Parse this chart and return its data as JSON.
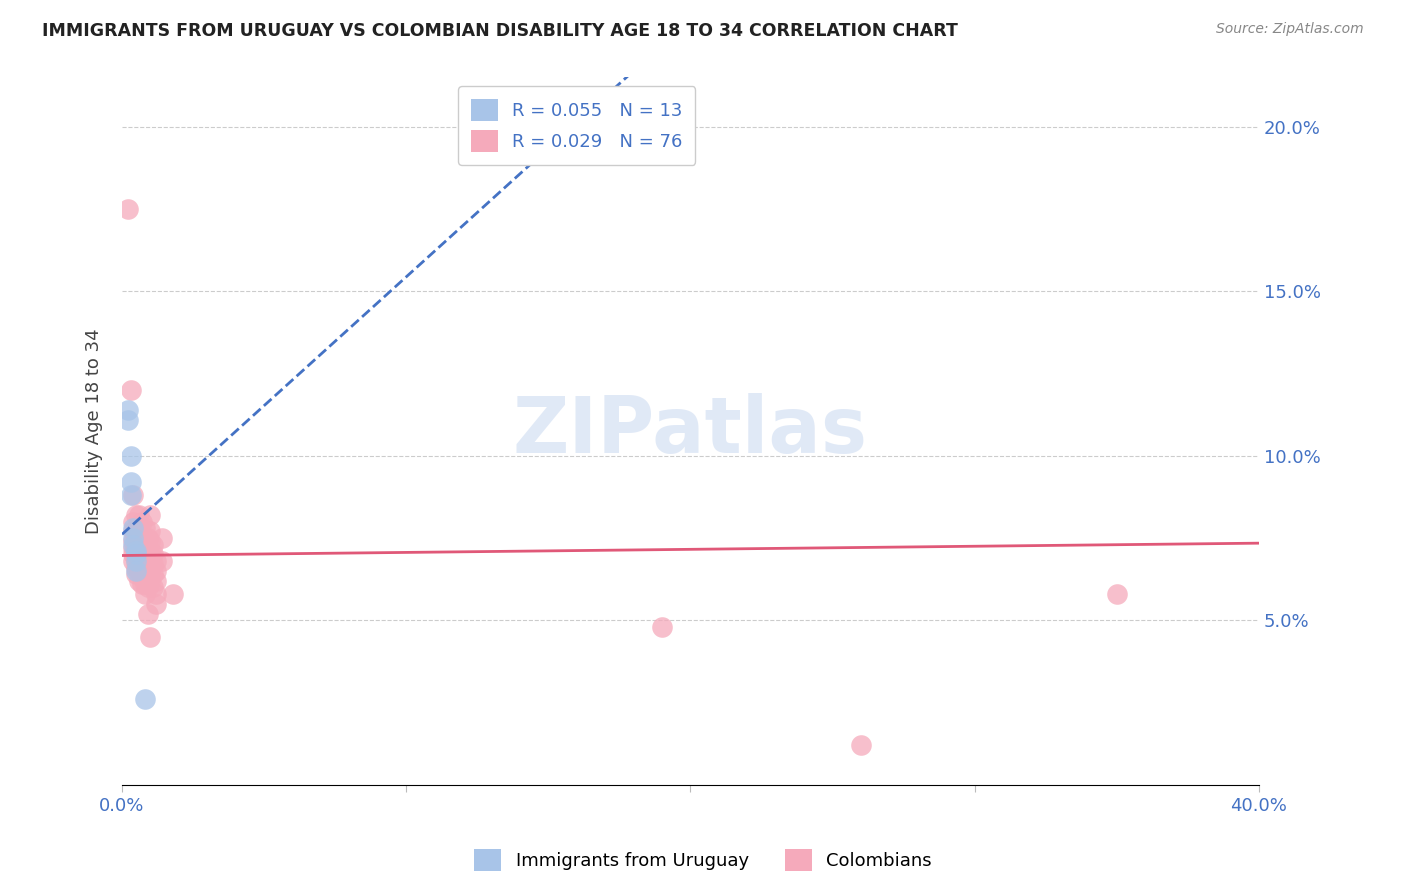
{
  "title": "IMMIGRANTS FROM URUGUAY VS COLOMBIAN DISABILITY AGE 18 TO 34 CORRELATION CHART",
  "source": "Source: ZipAtlas.com",
  "ylabel_label": "Disability Age 18 to 34",
  "x_min": 0.0,
  "x_max": 0.4,
  "y_min": 0.0,
  "y_max": 0.215,
  "watermark": "ZIPatlas",
  "uruguay_color": "#a8c4e8",
  "colombia_color": "#f5aabb",
  "uruguay_line_color": "#4472c4",
  "colombia_line_color": "#e05878",
  "uruguay_points": [
    [
      0.002,
      0.114
    ],
    [
      0.002,
      0.111
    ],
    [
      0.003,
      0.1
    ],
    [
      0.003,
      0.092
    ],
    [
      0.003,
      0.088
    ],
    [
      0.004,
      0.078
    ],
    [
      0.004,
      0.075
    ],
    [
      0.004,
      0.073
    ],
    [
      0.005,
      0.071
    ],
    [
      0.005,
      0.07
    ],
    [
      0.005,
      0.068
    ],
    [
      0.005,
      0.065
    ],
    [
      0.008,
      0.026
    ]
  ],
  "colombia_points": [
    [
      0.002,
      0.175
    ],
    [
      0.003,
      0.12
    ],
    [
      0.004,
      0.088
    ],
    [
      0.004,
      0.08
    ],
    [
      0.004,
      0.077
    ],
    [
      0.004,
      0.074
    ],
    [
      0.004,
      0.072
    ],
    [
      0.004,
      0.07
    ],
    [
      0.004,
      0.068
    ],
    [
      0.005,
      0.082
    ],
    [
      0.005,
      0.078
    ],
    [
      0.005,
      0.075
    ],
    [
      0.005,
      0.072
    ],
    [
      0.005,
      0.07
    ],
    [
      0.005,
      0.068
    ],
    [
      0.005,
      0.066
    ],
    [
      0.005,
      0.064
    ],
    [
      0.006,
      0.082
    ],
    [
      0.006,
      0.078
    ],
    [
      0.006,
      0.075
    ],
    [
      0.006,
      0.073
    ],
    [
      0.006,
      0.071
    ],
    [
      0.006,
      0.069
    ],
    [
      0.006,
      0.067
    ],
    [
      0.006,
      0.065
    ],
    [
      0.006,
      0.062
    ],
    [
      0.007,
      0.08
    ],
    [
      0.007,
      0.076
    ],
    [
      0.007,
      0.073
    ],
    [
      0.007,
      0.071
    ],
    [
      0.007,
      0.069
    ],
    [
      0.007,
      0.067
    ],
    [
      0.007,
      0.065
    ],
    [
      0.007,
      0.063
    ],
    [
      0.007,
      0.061
    ],
    [
      0.008,
      0.078
    ],
    [
      0.008,
      0.075
    ],
    [
      0.008,
      0.072
    ],
    [
      0.008,
      0.07
    ],
    [
      0.008,
      0.068
    ],
    [
      0.008,
      0.066
    ],
    [
      0.008,
      0.064
    ],
    [
      0.008,
      0.061
    ],
    [
      0.008,
      0.058
    ],
    [
      0.009,
      0.075
    ],
    [
      0.009,
      0.072
    ],
    [
      0.009,
      0.07
    ],
    [
      0.009,
      0.068
    ],
    [
      0.009,
      0.066
    ],
    [
      0.009,
      0.063
    ],
    [
      0.009,
      0.06
    ],
    [
      0.009,
      0.052
    ],
    [
      0.01,
      0.082
    ],
    [
      0.01,
      0.077
    ],
    [
      0.01,
      0.074
    ],
    [
      0.01,
      0.071
    ],
    [
      0.01,
      0.068
    ],
    [
      0.01,
      0.065
    ],
    [
      0.01,
      0.062
    ],
    [
      0.01,
      0.045
    ],
    [
      0.011,
      0.073
    ],
    [
      0.011,
      0.07
    ],
    [
      0.011,
      0.067
    ],
    [
      0.011,
      0.064
    ],
    [
      0.011,
      0.06
    ],
    [
      0.012,
      0.068
    ],
    [
      0.012,
      0.065
    ],
    [
      0.012,
      0.062
    ],
    [
      0.012,
      0.058
    ],
    [
      0.012,
      0.055
    ],
    [
      0.014,
      0.075
    ],
    [
      0.014,
      0.068
    ],
    [
      0.018,
      0.058
    ],
    [
      0.19,
      0.048
    ],
    [
      0.26,
      0.012
    ],
    [
      0.35,
      0.058
    ]
  ]
}
